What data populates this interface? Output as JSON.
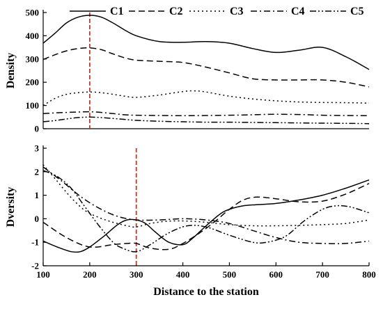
{
  "chart_data": [
    {
      "type": "line",
      "ylabel": "Density",
      "xlim": [
        100,
        800
      ],
      "ylim": [
        0,
        500
      ],
      "yticks": [
        0,
        100,
        200,
        300,
        400,
        500
      ],
      "xticks": [],
      "legend_position": "top",
      "reference_line_x": 200,
      "reference_line_color": "#c0392b",
      "series": [
        {
          "name": "C1",
          "style": "solid",
          "x": [
            100,
            125,
            150,
            175,
            200,
            225,
            250,
            275,
            300,
            350,
            400,
            450,
            500,
            550,
            600,
            650,
            700,
            750,
            800
          ],
          "y": [
            368,
            410,
            455,
            480,
            488,
            480,
            455,
            425,
            400,
            375,
            372,
            375,
            368,
            345,
            328,
            338,
            350,
            310,
            255
          ]
        },
        {
          "name": "C2",
          "style": "dashed",
          "x": [
            100,
            125,
            150,
            175,
            200,
            225,
            250,
            275,
            300,
            350,
            400,
            450,
            500,
            550,
            600,
            650,
            700,
            750,
            800
          ],
          "y": [
            298,
            318,
            335,
            345,
            348,
            340,
            322,
            305,
            295,
            290,
            285,
            265,
            240,
            215,
            210,
            210,
            210,
            200,
            180
          ]
        },
        {
          "name": "C3",
          "style": "dotted",
          "x": [
            100,
            125,
            150,
            175,
            200,
            225,
            250,
            275,
            300,
            350,
            400,
            425,
            450,
            500,
            550,
            600,
            650,
            700,
            750,
            800
          ],
          "y": [
            100,
            130,
            148,
            155,
            158,
            155,
            148,
            140,
            135,
            145,
            160,
            163,
            158,
            140,
            128,
            120,
            115,
            113,
            112,
            110
          ]
        },
        {
          "name": "C4",
          "style": "dashdot",
          "x": [
            100,
            125,
            150,
            175,
            200,
            225,
            250,
            275,
            300,
            350,
            400,
            450,
            500,
            550,
            600,
            650,
            700,
            750,
            800
          ],
          "y": [
            65,
            68,
            70,
            72,
            73,
            70,
            65,
            60,
            58,
            57,
            56,
            57,
            58,
            60,
            62,
            61,
            58,
            57,
            56
          ]
        },
        {
          "name": "C5",
          "style": "dashdotdot",
          "x": [
            100,
            125,
            150,
            175,
            200,
            225,
            250,
            275,
            300,
            350,
            400,
            450,
            500,
            550,
            600,
            650,
            700,
            750,
            800
          ],
          "y": [
            30,
            35,
            42,
            48,
            50,
            48,
            44,
            40,
            36,
            32,
            30,
            28,
            28,
            27,
            26,
            25,
            24,
            23,
            22
          ]
        }
      ]
    },
    {
      "type": "line",
      "xlabel": "Distance to the station",
      "ylabel": "Dversity",
      "xlim": [
        100,
        800
      ],
      "ylim": [
        -2,
        3
      ],
      "yticks": [
        -2,
        -1,
        0,
        1,
        2,
        3
      ],
      "xticks": [
        100,
        200,
        300,
        400,
        500,
        600,
        700,
        800
      ],
      "reference_line_x": 300,
      "reference_line_color": "#c0392b",
      "series": [
        {
          "name": "C1",
          "style": "solid",
          "x": [
            100,
            130,
            160,
            180,
            200,
            230,
            260,
            280,
            300,
            320,
            340,
            370,
            400,
            420,
            450,
            480,
            500,
            530,
            560,
            600,
            650,
            700,
            750,
            800
          ],
          "y": [
            -0.95,
            -1.2,
            -1.4,
            -1.4,
            -1.2,
            -0.75,
            -0.25,
            -0.05,
            -0.05,
            -0.2,
            -0.55,
            -1.0,
            -1.1,
            -0.85,
            -0.3,
            0.2,
            0.4,
            0.55,
            0.6,
            0.65,
            0.8,
            1.0,
            1.3,
            1.65
          ]
        },
        {
          "name": "C2",
          "style": "dashed",
          "x": [
            100,
            150,
            200,
            250,
            280,
            300,
            330,
            370,
            400,
            440,
            470,
            500,
            530,
            560,
            600,
            650,
            700,
            750,
            800
          ],
          "y": [
            -0.15,
            -0.8,
            -1.2,
            -1.1,
            -1.05,
            -1.05,
            -1.25,
            -1.3,
            -1.05,
            -0.55,
            -0.1,
            0.4,
            0.8,
            0.92,
            0.85,
            0.72,
            0.75,
            1.05,
            1.5
          ]
        },
        {
          "name": "C3",
          "style": "dotted",
          "x": [
            100,
            130,
            160,
            190,
            220,
            250,
            280,
            300,
            330,
            370,
            410,
            450,
            500,
            550,
            600,
            650,
            700,
            750,
            800
          ],
          "y": [
            2.3,
            1.6,
            0.9,
            0.35,
            0.05,
            -0.15,
            -0.3,
            -0.35,
            -0.2,
            -0.1,
            -0.1,
            -0.15,
            -0.25,
            -0.3,
            -0.3,
            -0.28,
            -0.25,
            -0.2,
            -0.05
          ]
        },
        {
          "name": "C4",
          "style": "dashdot",
          "x": [
            100,
            140,
            180,
            220,
            260,
            300,
            350,
            400,
            450,
            500,
            550,
            600,
            650,
            700,
            750,
            800
          ],
          "y": [
            2.2,
            1.6,
            0.95,
            0.45,
            0.1,
            -0.05,
            -0.05,
            0.0,
            -0.05,
            -0.2,
            -0.5,
            -0.8,
            -1.0,
            -1.05,
            -1.05,
            -0.95
          ]
        },
        {
          "name": "C5",
          "style": "dashdotdot",
          "x": [
            100,
            130,
            160,
            190,
            220,
            250,
            270,
            300,
            330,
            370,
            410,
            450,
            500,
            550,
            580,
            620,
            660,
            700,
            730,
            760,
            800
          ],
          "y": [
            2.05,
            1.8,
            1.3,
            0.5,
            -0.3,
            -1.0,
            -1.25,
            -1.4,
            -1.1,
            -0.6,
            -0.3,
            -0.35,
            -0.7,
            -1.0,
            -1.0,
            -0.75,
            -0.1,
            0.4,
            0.55,
            0.5,
            0.25
          ]
        }
      ]
    }
  ]
}
